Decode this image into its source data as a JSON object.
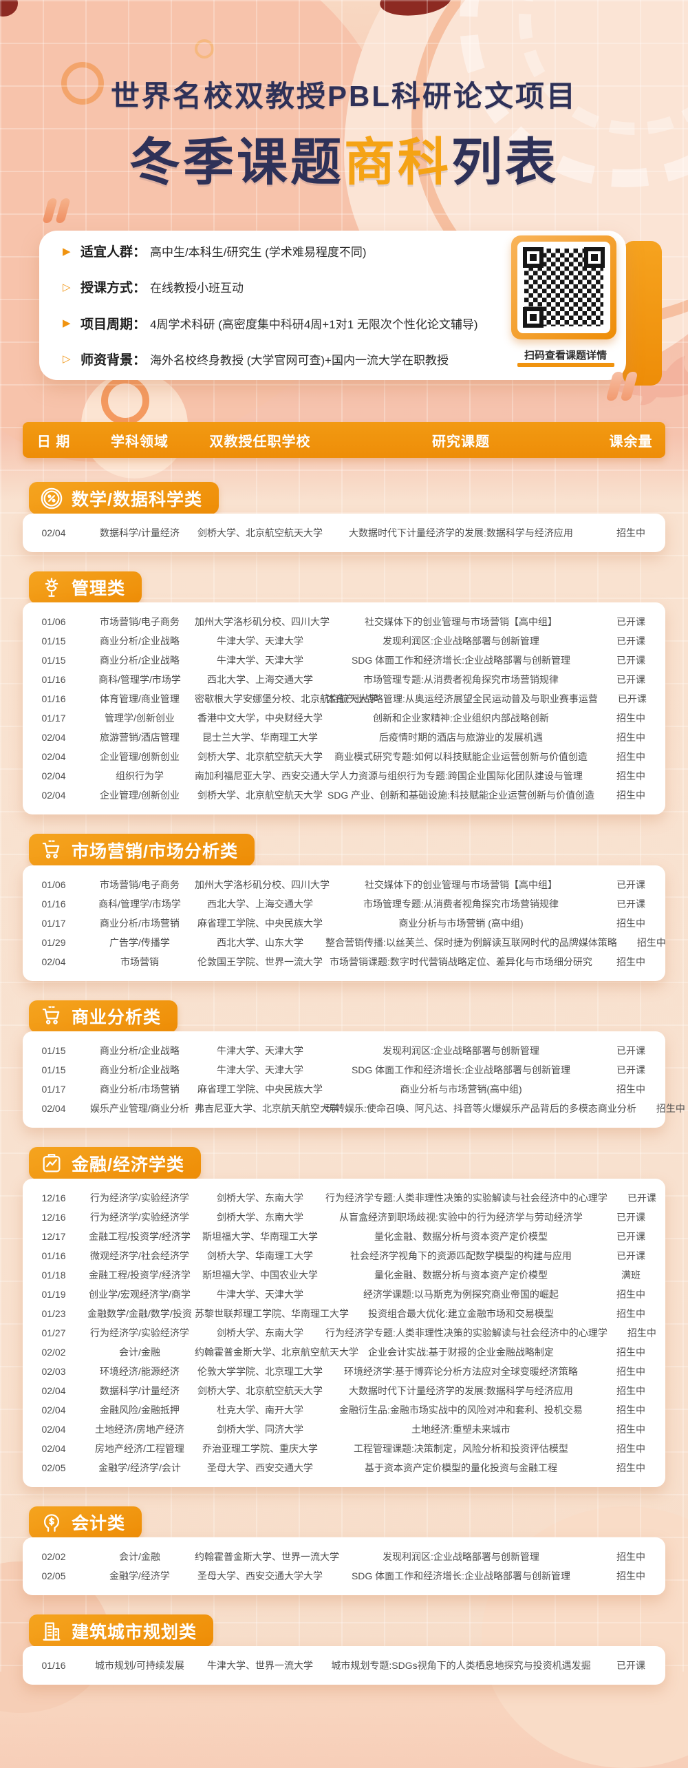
{
  "poster": {
    "title_line1": "世界名校双教授PBL科研论文项目",
    "title_line2": {
      "prefix": "冬季课题",
      "highlight": "商科",
      "suffix": "列表"
    }
  },
  "info_card": {
    "items": [
      {
        "label": "适宜人群：",
        "text": "高中生/本科生/研究生 (学术难易程度不同)",
        "marker": "filled"
      },
      {
        "label": "授课方式：",
        "text": "在线教授小班互动",
        "marker": "outline"
      },
      {
        "label": "项目周期：",
        "text": "4周学术科研 (高密度集中科研4周+1对1 无限次个性化论文辅导)",
        "marker": "filled"
      },
      {
        "label": "师资背景：",
        "text": "海外名校终身教授 (大学官网可查)+国内一流大学在职教授",
        "marker": "outline"
      }
    ],
    "qr": {
      "icon": "qr-code",
      "caption": "扫码查看课题详情"
    }
  },
  "table": {
    "columns": [
      "日 期",
      "学科领域",
      "双教授任职学校",
      "研究课题",
      "课余量"
    ]
  },
  "sections": [
    {
      "title": "数学/数据科学类",
      "icon": "percent-icon",
      "rows": [
        {
          "date": "02/04",
          "field": "数据科学/计量经济",
          "schools": "剑桥大学、北京航空航天大学",
          "topic": "大数据时代下计量经济学的发展:数据科学与经济应用",
          "status": "招生中"
        }
      ]
    },
    {
      "title": "管理类",
      "icon": "management-icon",
      "rows": [
        {
          "date": "01/06",
          "field": "市场营销/电子商务",
          "schools": "加州大学洛杉矶分校、四川大学",
          "topic": "社交媒体下的创业管理与市场营销【高中组】",
          "status": "已开课"
        },
        {
          "date": "01/15",
          "field": "商业分析/企业战略",
          "schools": "牛津大学、天津大学",
          "topic": "发现利润区:企业战略部署与创新管理",
          "status": "已开课"
        },
        {
          "date": "01/15",
          "field": "商业分析/企业战略",
          "schools": "牛津大学、天津大学",
          "topic": "SDG 体面工作和经济增长:企业战略部署与创新管理",
          "status": "已开课"
        },
        {
          "date": "01/16",
          "field": "商科/管理学/市场学",
          "schools": "西北大学、上海交通大学",
          "topic": "市场管理专题:从消费者视角探究市场营销规律",
          "status": "已开课"
        },
        {
          "date": "01/16",
          "field": "体育管理/商业管理",
          "schools": "密歇根大学安娜堡分校、北京航空航天大学",
          "topic": "体育产业战略管理:从奥运经济展望全民运动普及与职业赛事运营",
          "status": "已开课"
        },
        {
          "date": "01/17",
          "field": "管理学/创新创业",
          "schools": "香港中文大学，中央财经大学",
          "topic": "创新和企业家精神:企业组织内部战略创新",
          "status": "招生中"
        },
        {
          "date": "02/04",
          "field": "旅游营销/酒店管理",
          "schools": "昆士兰大学、华南理工大学",
          "topic": "后疫情时期的酒店与旅游业的发展机遇",
          "status": "招生中"
        },
        {
          "date": "02/04",
          "field": "企业管理/创新创业",
          "schools": "剑桥大学、北京航空航天大学",
          "topic": "商业模式研究专题:如何以科技赋能企业运营创新与价值创造",
          "status": "招生中"
        },
        {
          "date": "02/04",
          "field": "组织行为学",
          "schools": "南加利福尼亚大学、西安交通大学",
          "topic": "人力资源与组织行为专题:跨国企业国际化团队建设与管理",
          "status": "招生中"
        },
        {
          "date": "02/04",
          "field": "企业管理/创新创业",
          "schools": "剑桥大学、北京航空航天大学",
          "topic": "SDG 产业、创新和基础设施:科技赋能企业运营创新与价值创造",
          "status": "招生中"
        }
      ]
    },
    {
      "title": "市场营销/市场分析类",
      "icon": "cart-icon",
      "rows": [
        {
          "date": "01/06",
          "field": "市场营销/电子商务",
          "schools": "加州大学洛杉矶分校、四川大学",
          "topic": "社交媒体下的创业管理与市场营销【高中组】",
          "status": "已开课"
        },
        {
          "date": "01/16",
          "field": "商科/管理学/市场学",
          "schools": "西北大学、上海交通大学",
          "topic": "市场管理专题:从消费者视角探究市场营销规律",
          "status": "已开课"
        },
        {
          "date": "01/17",
          "field": "商业分析/市场营销",
          "schools": "麻省理工学院、中央民族大学",
          "topic": "商业分析与市场营销 (高中组)",
          "status": "招生中"
        },
        {
          "date": "01/29",
          "field": "广告学/传播学",
          "schools": "西北大学、山东大学",
          "topic": "整合营销传播:以丝芙兰、保时捷为例解读互联网时代的品牌媒体策略",
          "status": "招生中"
        },
        {
          "date": "02/04",
          "field": "市场营销",
          "schools": "伦敦国王学院、世界一流大学",
          "topic": "市场营销课题:数字时代营销战略定位、差异化与市场细分研究",
          "status": "招生中"
        }
      ]
    },
    {
      "title": "商业分析类",
      "icon": "cart-icon",
      "rows": [
        {
          "date": "01/15",
          "field": "商业分析/企业战略",
          "schools": "牛津大学、天津大学",
          "topic": "发现利润区:企业战略部署与创新管理",
          "status": "已开课"
        },
        {
          "date": "01/15",
          "field": "商业分析/企业战略",
          "schools": "牛津大学、天津大学",
          "topic": "SDG 体面工作和经济增长:企业战略部署与创新管理",
          "status": "已开课"
        },
        {
          "date": "01/17",
          "field": "商业分析/市场营销",
          "schools": "麻省理工学院、中央民族大学",
          "topic": "商业分析与市场营销(高中组)",
          "status": "招生中"
        },
        {
          "date": "02/04",
          "field": "娱乐产业管理/商业分析",
          "schools": "弗吉尼亚大学、北京航天航空大学",
          "topic": "玩转娱乐:使命召唤、阿凡达、抖音等火爆娱乐产品背后的多模态商业分析",
          "status": "招生中"
        }
      ]
    },
    {
      "title": "金融/经济学类",
      "icon": "finance-icon",
      "rows": [
        {
          "date": "12/16",
          "field": "行为经济学/实验经济学",
          "schools": "剑桥大学、东南大学",
          "topic": "行为经济学专题:人类非理性决策的实验解读与社会经济中的心理学",
          "status": "已开课"
        },
        {
          "date": "12/16",
          "field": "行为经济学/实验经济学",
          "schools": "剑桥大学、东南大学",
          "topic": "从盲盒经济到职场歧视:实验中的行为经济学与劳动经济学",
          "status": "已开课"
        },
        {
          "date": "12/17",
          "field": "金融工程/投资学/经济学",
          "schools": "斯坦福大学、华南理工大学",
          "topic": "量化金融、数据分析与资本资产定价模型",
          "status": "已开课"
        },
        {
          "date": "01/16",
          "field": "微观经济学/社会经济学",
          "schools": "剑桥大学、华南理工大学",
          "topic": "社会经济学视角下的资源匹配数学模型的构建与应用",
          "status": "已开课"
        },
        {
          "date": "01/18",
          "field": "金融工程/投资学/经济学",
          "schools": "斯坦福大学、中国农业大学",
          "topic": "量化金融、数据分析与资本资产定价模型",
          "status": "满班"
        },
        {
          "date": "01/19",
          "field": "创业学/宏观经济学/商学",
          "schools": "牛津大学、天津大学",
          "topic": "经济学课题:以马斯克为例探究商业帝国的崛起",
          "status": "招生中"
        },
        {
          "date": "01/23",
          "field": "金融数学/金融/数学/投资",
          "schools": "苏黎世联邦理工学院、华南理工大学",
          "topic": "投资组合最大优化:建立金融市场和交易模型",
          "status": "招生中"
        },
        {
          "date": "01/27",
          "field": "行为经济学/实验经济学",
          "schools": "剑桥大学、东南大学",
          "topic": "行为经济学专题:人类非理性决策的实验解读与社会经济中的心理学",
          "status": "招生中"
        },
        {
          "date": "02/02",
          "field": "会计/金融",
          "schools": "约翰霍普金斯大学、北京航空航天大学",
          "topic": "企业会计实战:基于财报的企业金融战略制定",
          "status": "招生中"
        },
        {
          "date": "02/03",
          "field": "环境经济/能源经济",
          "schools": "伦敦大学学院、北京理工大学",
          "topic": "环境经济学:基于博弈论分析方法应对全球变暖经济策略",
          "status": "招生中"
        },
        {
          "date": "02/04",
          "field": "数据科学/计量经济",
          "schools": "剑桥大学、北京航空航天大学",
          "topic": "大数据时代下计量经济学的发展:数据科学与经济应用",
          "status": "招生中"
        },
        {
          "date": "02/04",
          "field": "金融风险/金融抵押",
          "schools": "杜克大学、南开大学",
          "topic": "金融衍生品:金融市场实战中的风险对冲和套利、投机交易",
          "status": "招生中"
        },
        {
          "date": "02/04",
          "field": "土地经济/房地产经济",
          "schools": "剑桥大学、同济大学",
          "topic": "土地经济:重塑未来城市",
          "status": "招生中"
        },
        {
          "date": "02/04",
          "field": "房地产经济/工程管理",
          "schools": "乔治亚理工学院、重庆大学",
          "topic": "工程管理课题:决策制定，风险分析和投资评估模型",
          "status": "招生中"
        },
        {
          "date": "02/05",
          "field": "金融学/经济学/会计",
          "schools": "圣母大学、西安交通大学",
          "topic": "基于资本资产定价模型的量化投资与金融工程",
          "status": "招生中"
        }
      ]
    },
    {
      "title": "会计类",
      "icon": "accounting-icon",
      "rows": [
        {
          "date": "02/02",
          "field": "会计/金融",
          "schools": "约翰霍普金斯大学、世界一流大学",
          "topic": "发现利润区:企业战略部署与创新管理",
          "status": "招生中"
        },
        {
          "date": "02/05",
          "field": "金融学/经济学",
          "schools": "圣母大学、西安交通大学大学",
          "topic": "SDG 体面工作和经济增长:企业战略部署与创新管理",
          "status": "招生中"
        }
      ]
    },
    {
      "title": "建筑城市规划类",
      "icon": "building-icon",
      "rows": [
        {
          "date": "01/16",
          "field": "城市规划/可持续发展",
          "schools": "牛津大学、世界一流大学",
          "topic": "城市规划专题:SDGs视角下的人类栖息地探究与投资机遇发掘",
          "status": "已开课"
        }
      ]
    }
  ],
  "colors": {
    "accent_orange": "#f0930f",
    "title_navy": "#2e3158",
    "highlight_orange": "#f5a315",
    "row_text": "#4e4e4e",
    "maroon_dot": "#8d2a22"
  }
}
